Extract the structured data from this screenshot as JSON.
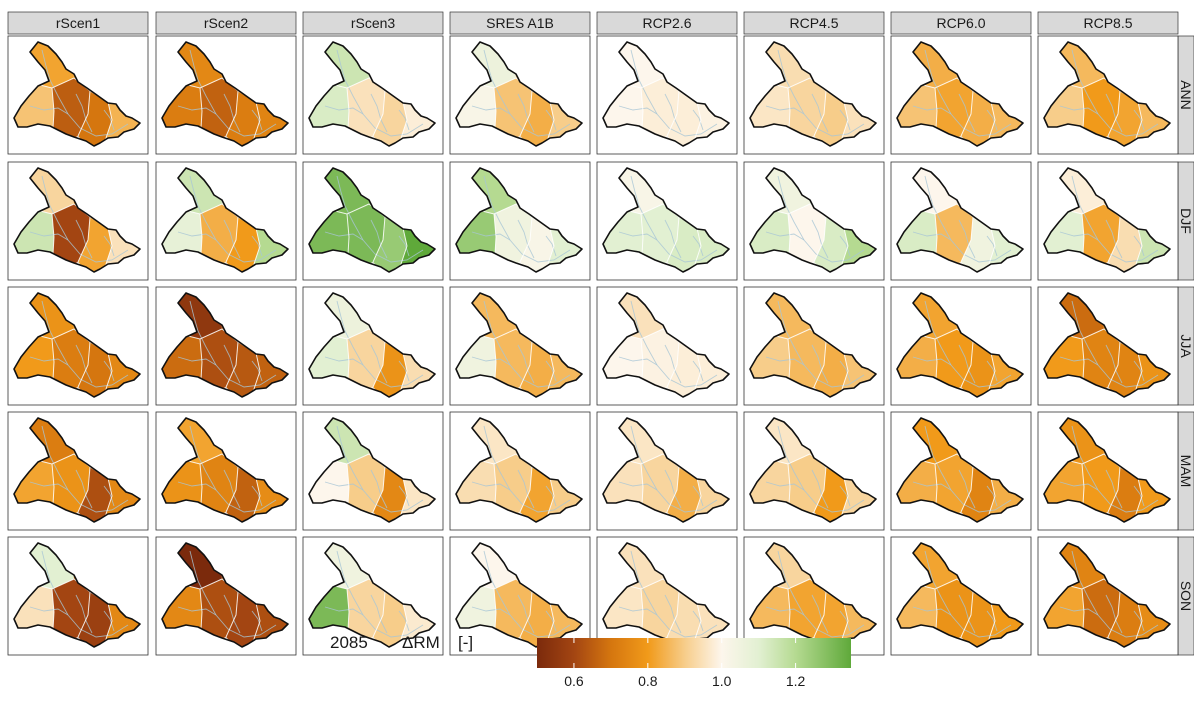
{
  "chart_data": {
    "type": "faceted-choropleth-map",
    "year_label": "2085",
    "variable_label": "ΔRM",
    "unit_label": "[-]",
    "columns": [
      "rScen1",
      "rScen2",
      "rScen3",
      "SRES A1B",
      "RCP2.6",
      "RCP4.5",
      "RCP6.0",
      "RCP8.5"
    ],
    "rows": [
      "ANN",
      "DJF",
      "JJA",
      "MAM",
      "SON"
    ],
    "colorbar": {
      "range": [
        0.5,
        1.35
      ],
      "ticks": [
        0.6,
        0.8,
        1.0,
        1.2
      ],
      "tick_labels": [
        "0.6",
        "0.8",
        "1.0",
        "1.2"
      ],
      "stops": [
        {
          "value": 0.5,
          "color": "#7b2a0c"
        },
        {
          "value": 0.6,
          "color": "#a34512"
        },
        {
          "value": 0.7,
          "color": "#d5760f"
        },
        {
          "value": 0.8,
          "color": "#f19a1a"
        },
        {
          "value": 0.9,
          "color": "#f7cd8a"
        },
        {
          "value": 1.0,
          "color": "#fdf6ec"
        },
        {
          "value": 1.1,
          "color": "#e2f0d2"
        },
        {
          "value": 1.2,
          "color": "#b5da91"
        },
        {
          "value": 1.35,
          "color": "#5fa93a"
        }
      ]
    },
    "subregions": [
      "northwest",
      "west",
      "northcentral",
      "central",
      "southcentral",
      "southeast"
    ],
    "values": {
      "rScen1": {
        "ANN": [
          0.82,
          0.88,
          0.8,
          0.65,
          0.7,
          0.85
        ],
        "DJF": [
          0.92,
          1.15,
          0.75,
          0.6,
          0.82,
          0.95
        ],
        "JJA": [
          0.78,
          0.8,
          0.75,
          0.72,
          0.7,
          0.75
        ],
        "MAM": [
          0.72,
          0.82,
          0.8,
          0.78,
          0.62,
          0.75
        ],
        "SON": [
          1.1,
          0.95,
          0.68,
          0.6,
          0.58,
          0.75
        ]
      },
      "rScen2": {
        "ANN": [
          0.75,
          0.72,
          0.74,
          0.66,
          0.72,
          0.74
        ],
        "DJF": [
          1.15,
          1.08,
          1.1,
          0.84,
          0.8,
          1.2
        ],
        "JJA": [
          0.55,
          0.68,
          0.64,
          0.62,
          0.64,
          0.66
        ],
        "MAM": [
          0.82,
          0.78,
          0.76,
          0.74,
          0.66,
          0.76
        ],
        "SON": [
          0.5,
          0.75,
          0.64,
          0.62,
          0.6,
          0.62
        ]
      },
      "rScen3": {
        "ANN": [
          1.15,
          1.12,
          1.05,
          0.95,
          0.92,
          0.98
        ],
        "DJF": [
          1.3,
          1.3,
          1.3,
          1.3,
          1.25,
          1.35
        ],
        "JJA": [
          1.06,
          1.1,
          1.02,
          0.92,
          0.78,
          0.94
        ],
        "MAM": [
          1.15,
          1.0,
          0.95,
          0.9,
          0.75,
          0.96
        ],
        "SON": [
          1.05,
          1.3,
          1.0,
          0.92,
          0.9,
          0.97
        ]
      },
      "SRES A1B": {
        "ANN": [
          1.06,
          1.02,
          0.92,
          0.88,
          0.84,
          0.9
        ],
        "DJF": [
          1.2,
          1.25,
          1.15,
          1.05,
          1.02,
          1.1
        ],
        "JJA": [
          0.86,
          1.05,
          0.84,
          0.86,
          0.84,
          0.86
        ],
        "MAM": [
          0.96,
          0.94,
          0.92,
          0.9,
          0.82,
          0.9
        ],
        "SON": [
          1.0,
          1.05,
          0.9,
          0.86,
          0.84,
          0.86
        ]
      },
      "RCP2.6": {
        "ANN": [
          1.0,
          1.0,
          0.99,
          0.98,
          0.98,
          0.99
        ],
        "DJF": [
          1.02,
          1.1,
          1.12,
          1.1,
          1.12,
          1.12
        ],
        "JJA": [
          0.95,
          1.0,
          1.0,
          0.99,
          0.98,
          0.98
        ],
        "MAM": [
          0.96,
          0.95,
          0.92,
          0.92,
          0.84,
          0.92
        ],
        "SON": [
          0.95,
          0.96,
          0.96,
          0.92,
          0.94,
          0.95
        ]
      },
      "RCP4.5": {
        "ANN": [
          0.94,
          0.96,
          0.93,
          0.92,
          0.9,
          0.95
        ],
        "DJF": [
          1.05,
          1.12,
          1.1,
          1.0,
          1.12,
          1.2
        ],
        "JJA": [
          0.86,
          0.9,
          0.86,
          0.86,
          0.84,
          0.88
        ],
        "MAM": [
          0.96,
          0.92,
          0.9,
          0.9,
          0.8,
          0.92
        ],
        "SON": [
          0.92,
          0.86,
          0.84,
          0.82,
          0.82,
          0.86
        ]
      },
      "RCP6.0": {
        "ANN": [
          0.84,
          0.88,
          0.86,
          0.82,
          0.84,
          0.86
        ],
        "DJF": [
          1.0,
          1.12,
          0.95,
          0.86,
          1.05,
          1.1
        ],
        "JJA": [
          0.82,
          0.84,
          0.82,
          0.8,
          0.78,
          0.82
        ],
        "MAM": [
          0.8,
          0.84,
          0.86,
          0.82,
          0.74,
          0.84
        ],
        "SON": [
          0.82,
          0.86,
          0.8,
          0.78,
          0.78,
          0.8
        ]
      },
      "RCP8.5": {
        "ANN": [
          0.86,
          0.9,
          0.84,
          0.8,
          0.82,
          0.86
        ],
        "DJF": [
          0.98,
          1.1,
          0.86,
          0.82,
          0.94,
          1.15
        ],
        "JJA": [
          0.68,
          0.8,
          0.76,
          0.74,
          0.74,
          0.78
        ],
        "MAM": [
          0.78,
          0.82,
          0.82,
          0.8,
          0.72,
          0.8
        ],
        "SON": [
          0.74,
          0.82,
          0.76,
          0.68,
          0.72,
          0.76
        ]
      }
    }
  }
}
